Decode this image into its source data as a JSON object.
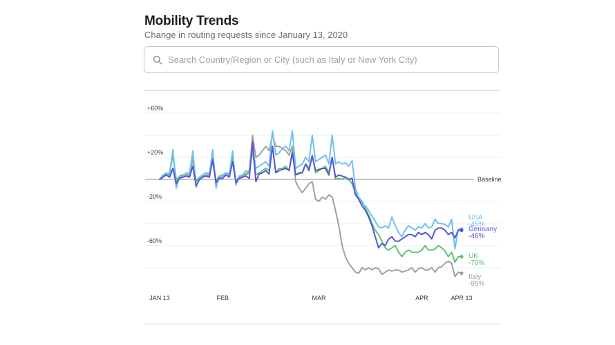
{
  "header": {
    "title": "Mobility Trends",
    "subtitle": "Change in routing requests since January 13, 2020"
  },
  "search": {
    "placeholder": "Search Country/Region or City (such as Italy or New York City)",
    "value": ""
  },
  "icons": {
    "search": "search-icon"
  },
  "chart_data": {
    "type": "line",
    "title": "",
    "xlabel": "",
    "ylabel": "",
    "ylim": [
      -85,
      62
    ],
    "yticks": [
      {
        "value": 60,
        "label": "+60%"
      },
      {
        "value": 20,
        "label": "+20%"
      },
      {
        "value": -20,
        "label": "-20%"
      },
      {
        "value": -60,
        "label": "-60%"
      }
    ],
    "baseline": {
      "value": 0,
      "label": "Baseline"
    },
    "gridlines": [
      60,
      40,
      20,
      -20,
      -40,
      -60,
      -80
    ],
    "x_start_day": 0,
    "x_end_day": 91,
    "xticks": [
      {
        "day": 0,
        "label": "JAN 13"
      },
      {
        "day": 19,
        "label": "FEB"
      },
      {
        "day": 48,
        "label": "MAR"
      },
      {
        "day": 79,
        "label": "APR"
      },
      {
        "day": 91,
        "label": "APR 13"
      }
    ],
    "series": [
      {
        "name": "USA",
        "label": "USA",
        "value_label": "-45%",
        "color": "#6ec1f1",
        "values": [
          0,
          4,
          6,
          4,
          27,
          -8,
          3,
          2,
          6,
          4,
          26,
          -7,
          2,
          4,
          6,
          4,
          27,
          -8,
          3,
          3,
          6,
          4,
          26,
          -5,
          3,
          4,
          8,
          6,
          30,
          10,
          12,
          14,
          16,
          12,
          44,
          22,
          24,
          28,
          30,
          26,
          44,
          10,
          12,
          14,
          20,
          16,
          40,
          16,
          18,
          20,
          22,
          14,
          40,
          14,
          16,
          14,
          15,
          12,
          17,
          -8,
          -16,
          -22,
          -24,
          -28,
          -33,
          -38,
          -43,
          -44,
          -42,
          -44,
          -34,
          -42,
          -48,
          -52,
          -46,
          -42,
          -44,
          -46,
          -43,
          -44,
          -40,
          -44,
          -43,
          -36,
          -40,
          -40,
          -41,
          -43,
          -36,
          -63,
          -45,
          -45
        ]
      },
      {
        "name": "Germany",
        "label": "Germany",
        "value_label": "-46%",
        "color": "#5856d6",
        "values": [
          0,
          2,
          4,
          2,
          10,
          -4,
          1,
          2,
          3,
          2,
          12,
          -6,
          0,
          2,
          3,
          2,
          18,
          -3,
          1,
          1,
          4,
          2,
          16,
          -3,
          1,
          2,
          3,
          1,
          34,
          -2,
          5,
          6,
          8,
          5,
          30,
          6,
          8,
          9,
          10,
          8,
          24,
          4,
          6,
          6,
          14,
          8,
          21,
          8,
          9,
          10,
          10,
          4,
          20,
          2,
          4,
          3,
          2,
          0,
          1,
          -14,
          -18,
          -24,
          -28,
          -34,
          -42,
          -52,
          -62,
          -58,
          -60,
          -54,
          -52,
          -56,
          -56,
          -54,
          -52,
          -50,
          -50,
          -52,
          -48,
          -50,
          -48,
          -50,
          -54,
          -46,
          -44,
          -44,
          -46,
          -50,
          -48,
          -53,
          -46,
          -46
        ]
      },
      {
        "name": "UK",
        "label": "UK",
        "value_label": "-70%",
        "color": "#5ec56c",
        "values": [
          0,
          4,
          5,
          6,
          22,
          -2,
          3,
          4,
          5,
          6,
          22,
          -1,
          2,
          4,
          6,
          5,
          16,
          -1,
          3,
          4,
          6,
          5,
          18,
          -2,
          3,
          4,
          5,
          8,
          26,
          4,
          6,
          8,
          10,
          8,
          30,
          6,
          10,
          10,
          12,
          8,
          26,
          4,
          5,
          6,
          14,
          10,
          22,
          6,
          8,
          10,
          12,
          6,
          20,
          0,
          1,
          0,
          2,
          0,
          -4,
          -12,
          -16,
          -20,
          -26,
          -32,
          -40,
          -46,
          -50,
          -56,
          -62,
          -64,
          -62,
          -60,
          -66,
          -70,
          -66,
          -64,
          -66,
          -66,
          -66,
          -64,
          -60,
          -64,
          -64,
          -63,
          -60,
          -62,
          -65,
          -70,
          -66,
          -75,
          -70,
          -70
        ]
      },
      {
        "name": "Italy",
        "label": "Italy",
        "value_label": "-85%",
        "color": "#a0a0a3",
        "values": [
          0,
          3,
          4,
          3,
          24,
          0,
          2,
          3,
          4,
          3,
          18,
          -2,
          2,
          3,
          4,
          3,
          20,
          -2,
          2,
          3,
          4,
          3,
          20,
          -2,
          2,
          3,
          4,
          6,
          40,
          20,
          22,
          26,
          30,
          26,
          40,
          30,
          30,
          28,
          26,
          22,
          30,
          -2,
          -8,
          -12,
          -8,
          -4,
          -2,
          -18,
          -20,
          -16,
          -18,
          -14,
          -16,
          -28,
          -42,
          -60,
          -70,
          -76,
          -80,
          -84,
          -85,
          -80,
          -82,
          -80,
          -82,
          -80,
          -81,
          -86,
          -84,
          -82,
          -83,
          -82,
          -82,
          -84,
          -83,
          -82,
          -80,
          -84,
          -81,
          -80,
          -82,
          -82,
          -80,
          -84,
          -80,
          -79,
          -76,
          -74,
          -76,
          -88,
          -84,
          -85
        ]
      }
    ],
    "legend_position": "right-end"
  }
}
